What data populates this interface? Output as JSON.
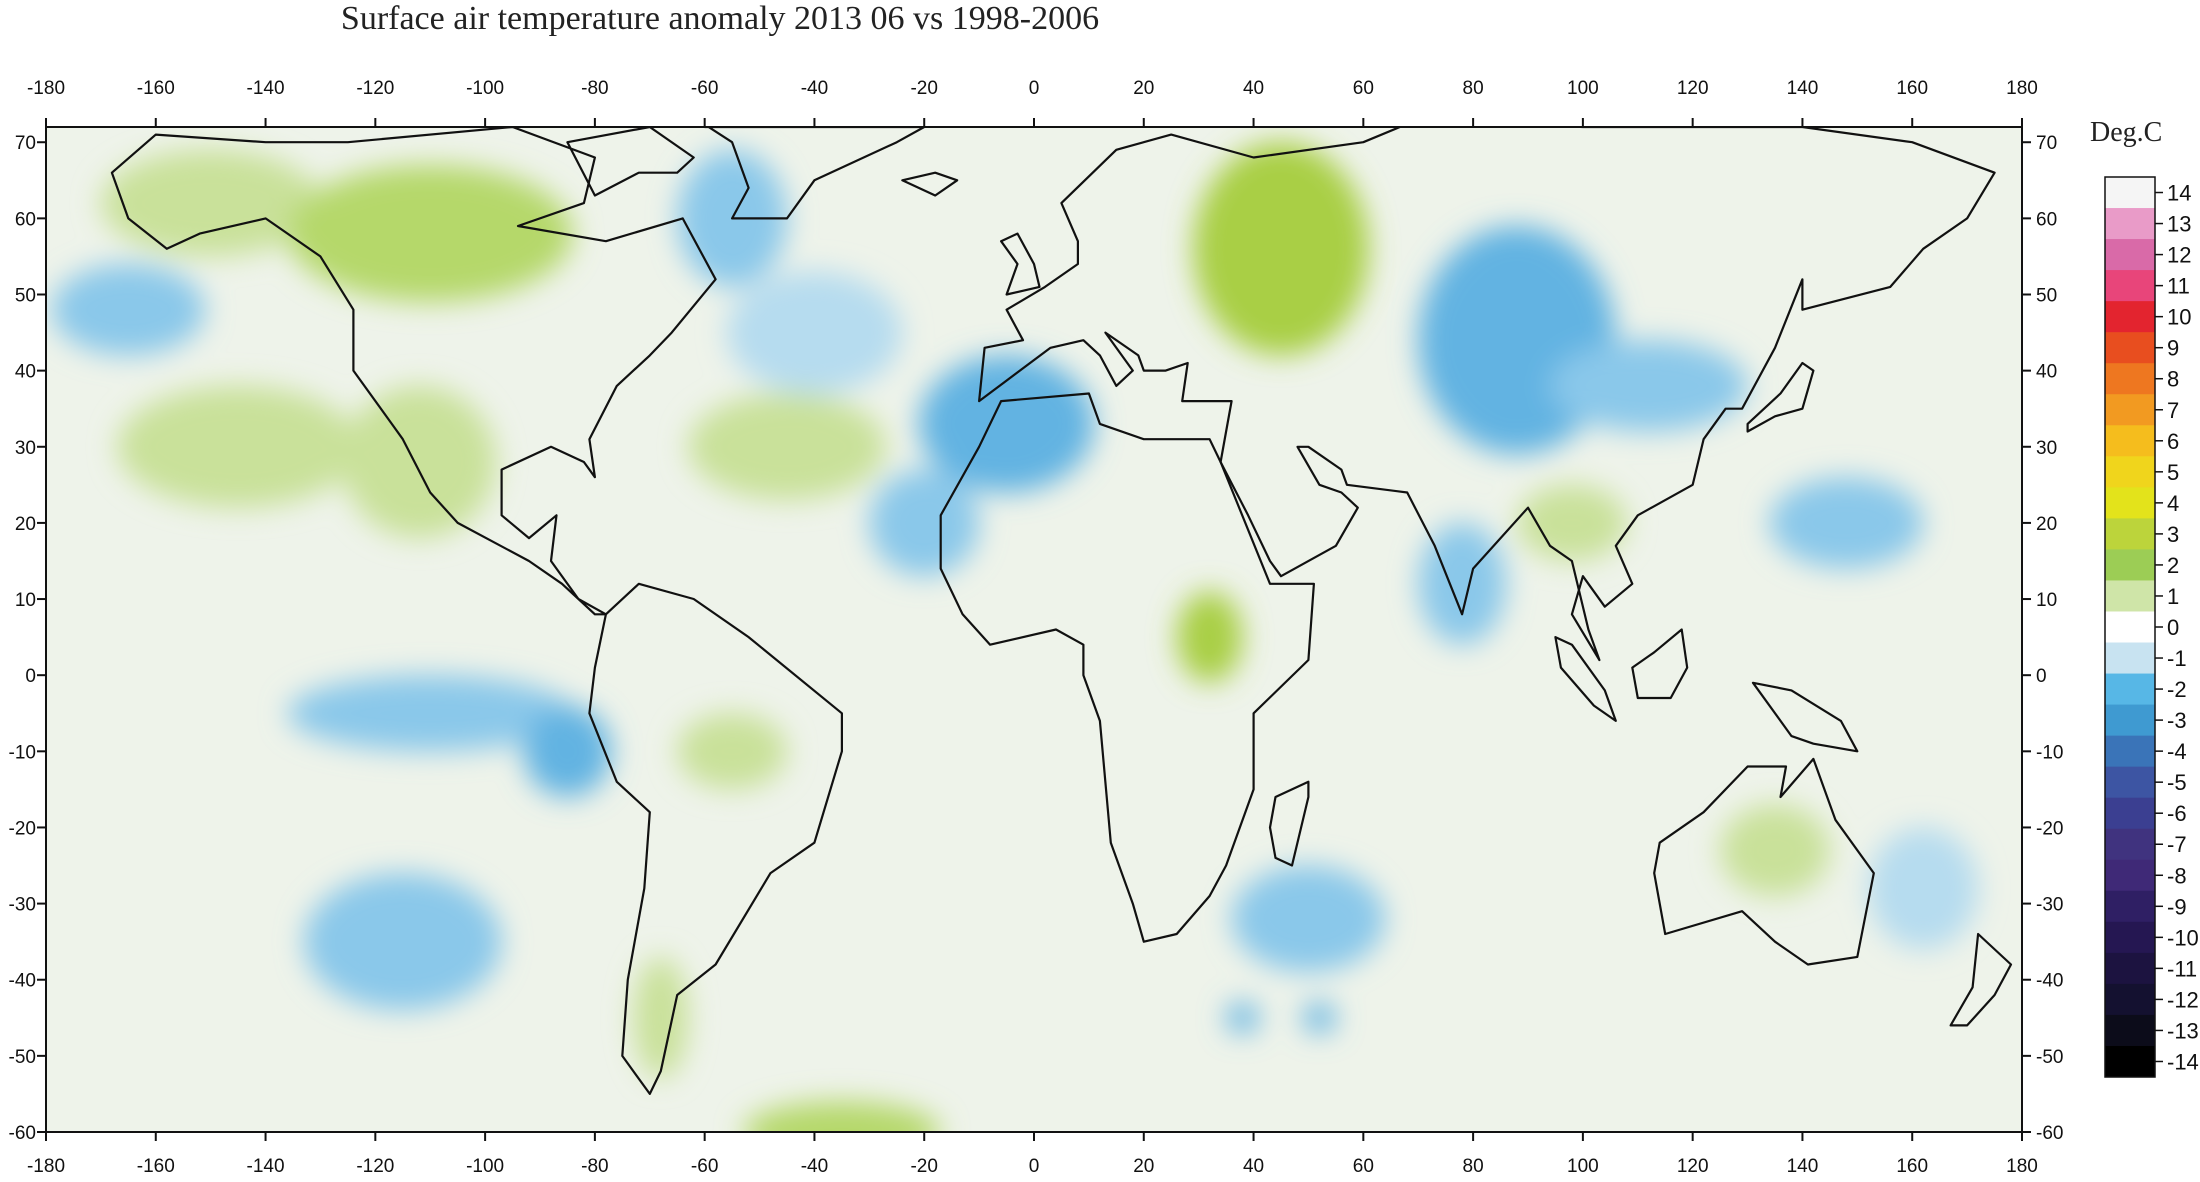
{
  "title": "Surface air temperature anomaly 2013 06 vs 1998-2006",
  "colorbar": {
    "unit": "Deg.C",
    "levels": [
      14,
      13,
      12,
      11,
      10,
      9,
      8,
      7,
      6,
      5,
      4,
      3,
      2,
      1,
      0,
      -1,
      -2,
      -3,
      -4,
      -5,
      -6,
      -7,
      -8,
      -9,
      -10,
      -11,
      -12,
      -13,
      -14
    ],
    "colors": [
      "#f5f5f5",
      "#e99bc8",
      "#d96aa8",
      "#e8457a",
      "#e3242f",
      "#e84e1f",
      "#ee7720",
      "#f29a21",
      "#f5bd1d",
      "#f0d51c",
      "#e3e31b",
      "#bcd43b",
      "#9ccd55",
      "#cfe5a8",
      "#ffffff",
      "#c8e3f1",
      "#57b7e6",
      "#3f9ad1",
      "#3a74b8",
      "#3d55a3",
      "#3b3f91",
      "#40337f",
      "#3f2977",
      "#2f1f64",
      "#251752",
      "#1c1340",
      "#141130",
      "#0c0c1a",
      "#000000"
    ]
  },
  "axes": {
    "lon_ticks": [
      -180,
      -160,
      -140,
      -120,
      -100,
      -80,
      -60,
      -40,
      -20,
      0,
      20,
      40,
      60,
      80,
      100,
      120,
      140,
      160,
      180
    ],
    "lat_ticks": [
      70,
      60,
      50,
      40,
      30,
      20,
      10,
      0,
      -10,
      -20,
      -30,
      -40,
      -50,
      -60
    ],
    "lon_range": [
      -180,
      180
    ],
    "lat_range": [
      -60,
      72
    ]
  },
  "anomaly_regions": [
    {
      "name": "alaska",
      "lon": -150,
      "lat": 62,
      "rx": 20,
      "ry": 7,
      "value": 1.5
    },
    {
      "name": "canada-north",
      "lon": -110,
      "lat": 58,
      "rx": 26,
      "ry": 9,
      "value": 2
    },
    {
      "name": "greenland-west",
      "lon": -55,
      "lat": 60,
      "rx": 10,
      "ry": 9,
      "value": -1.5
    },
    {
      "name": "n-atlantic",
      "lon": -40,
      "lat": 45,
      "rx": 16,
      "ry": 8,
      "value": -1
    },
    {
      "name": "ne-pacific",
      "lon": -165,
      "lat": 48,
      "rx": 14,
      "ry": 6,
      "value": -1.5
    },
    {
      "name": "central-pacific",
      "lon": -145,
      "lat": 30,
      "rx": 22,
      "ry": 8,
      "value": 1.5
    },
    {
      "name": "western-us",
      "lon": -112,
      "lat": 28,
      "rx": 14,
      "ry": 10,
      "value": 1.5
    },
    {
      "name": "mid-atlantic",
      "lon": -45,
      "lat": 30,
      "rx": 18,
      "ry": 7,
      "value": 1.5
    },
    {
      "name": "iberia",
      "lon": -5,
      "lat": 33,
      "rx": 16,
      "ry": 9,
      "value": -2
    },
    {
      "name": "w-africa-coast",
      "lon": -20,
      "lat": 20,
      "rx": 10,
      "ry": 7,
      "value": -1.5
    },
    {
      "name": "russia-west",
      "lon": 45,
      "lat": 56,
      "rx": 16,
      "ry": 14,
      "value": 2.5
    },
    {
      "name": "central-asia",
      "lon": 88,
      "lat": 44,
      "rx": 18,
      "ry": 15,
      "value": -2
    },
    {
      "name": "mongolia",
      "lon": 112,
      "lat": 38,
      "rx": 18,
      "ry": 6,
      "value": -1.5
    },
    {
      "name": "east-africa",
      "lon": 32,
      "lat": 5,
      "rx": 6,
      "ry": 6,
      "value": 2.5
    },
    {
      "name": "india",
      "lon": 78,
      "lat": 12,
      "rx": 8,
      "ry": 8,
      "value": -1.5
    },
    {
      "name": "se-asia",
      "lon": 98,
      "lat": 20,
      "rx": 10,
      "ry": 5,
      "value": 1.5
    },
    {
      "name": "w-pacific",
      "lon": 148,
      "lat": 20,
      "rx": 14,
      "ry": 6,
      "value": -1.5
    },
    {
      "name": "e-pacific-eq",
      "lon": -110,
      "lat": -5,
      "rx": 26,
      "ry": 5,
      "value": -1.5
    },
    {
      "name": "peru-coast",
      "lon": -85,
      "lat": -10,
      "rx": 8,
      "ry": 6,
      "value": -2
    },
    {
      "name": "amazon",
      "lon": -55,
      "lat": -10,
      "rx": 10,
      "ry": 5,
      "value": 1.5
    },
    {
      "name": "se-pacific",
      "lon": -115,
      "lat": -35,
      "rx": 18,
      "ry": 9,
      "value": -1.5
    },
    {
      "name": "patagonia",
      "lon": -68,
      "lat": -45,
      "rx": 5,
      "ry": 8,
      "value": 1.5
    },
    {
      "name": "s-atlantic-south",
      "lon": -35,
      "lat": -60,
      "rx": 18,
      "ry": 4,
      "value": 2
    },
    {
      "name": "s-indian",
      "lon": 50,
      "lat": -32,
      "rx": 14,
      "ry": 7,
      "value": -1.5
    },
    {
      "name": "australia",
      "lon": 135,
      "lat": -23,
      "rx": 10,
      "ry": 6,
      "value": 1.5
    },
    {
      "name": "tasman",
      "lon": 162,
      "lat": -28,
      "rx": 10,
      "ry": 8,
      "value": -1
    },
    {
      "name": "s-indian-islets",
      "lon": 38,
      "lat": -45,
      "rx": 3,
      "ry": 2,
      "value": -2
    },
    {
      "name": "s-indian-islets-2",
      "lon": 52,
      "lat": -45,
      "rx": 3,
      "ry": 2,
      "value": -2
    }
  ]
}
